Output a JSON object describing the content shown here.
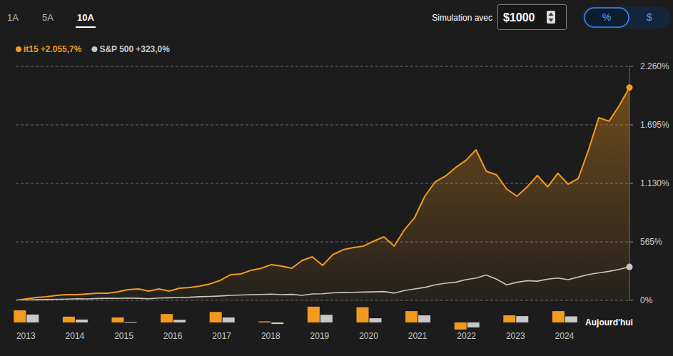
{
  "controls": {
    "tabs": [
      "1A",
      "5A",
      "10A"
    ],
    "active_tab": "10A",
    "simulation_label": "Simulation avec",
    "amount": "$1000",
    "mode_buttons": [
      "%",
      "$"
    ],
    "active_mode": "%"
  },
  "chart_data": [
    {
      "type": "line",
      "x": [
        0,
        2,
        4,
        6,
        8,
        10,
        12,
        14,
        16,
        18,
        20,
        22,
        24,
        26,
        28,
        30,
        32,
        34,
        36,
        38,
        40,
        42,
        44,
        46,
        48,
        50,
        52,
        54,
        56,
        58,
        60,
        62,
        64,
        66,
        68,
        70,
        72,
        74,
        76,
        78,
        80,
        82,
        84,
        86,
        88,
        90,
        92,
        94,
        96,
        98,
        100,
        102,
        104,
        106,
        108,
        110,
        112,
        114,
        116,
        118,
        120
      ],
      "series": [
        {
          "name": "it15",
          "total_label": "+2.055,7%",
          "color": "#f39a1e",
          "marker": "end-dot",
          "values": [
            0,
            14,
            28,
            34,
            48,
            55,
            55,
            62,
            69,
            69,
            83,
            103,
            110,
            90,
            110,
            90,
            117,
            124,
            138,
            159,
            193,
            248,
            255,
            290,
            310,
            345,
            331,
            310,
            386,
            420,
            338,
            441,
            489,
            510,
            524,
            572,
            613,
            524,
            682,
            799,
            1006,
            1144,
            1199,
            1282,
            1351,
            1454,
            1247,
            1213,
            1075,
            1006,
            1096,
            1206,
            1096,
            1227,
            1123,
            1178,
            1454,
            1764,
            1730,
            1881,
            2055.7
          ]
        },
        {
          "name": "S&P 500",
          "total_label": "+323,0%",
          "color": "#c8c8c8",
          "marker": "end-dot",
          "values": [
            0,
            3,
            6,
            8,
            10,
            12,
            15,
            14,
            18,
            20,
            19,
            22,
            20,
            16,
            22,
            25,
            28,
            30,
            35,
            38,
            42,
            48,
            52,
            55,
            57,
            60,
            55,
            58,
            48,
            62,
            64,
            72,
            75,
            78,
            80,
            82,
            85,
            70,
            95,
            110,
            125,
            150,
            165,
            175,
            200,
            215,
            245,
            205,
            150,
            175,
            190,
            185,
            205,
            215,
            200,
            225,
            250,
            265,
            280,
            300,
            323
          ]
        }
      ],
      "xlim": [
        0,
        120
      ],
      "ylim": [
        0,
        2260
      ],
      "yticks": [
        {
          "value": 0,
          "label": "0%"
        },
        {
          "value": 565,
          "label": "565%"
        },
        {
          "value": 1130,
          "label": "1.130%"
        },
        {
          "value": 1695,
          "label": "1.695%"
        },
        {
          "value": 2260,
          "label": "2.260%"
        }
      ],
      "grid": true,
      "legend": "top-left",
      "tick_labels": "y"
    },
    {
      "type": "bar",
      "categories": [
        "2013",
        "2014",
        "2015",
        "2016",
        "2017",
        "2018",
        "2019",
        "2020",
        "2021",
        "2022",
        "2023",
        "2024",
        "Aujourd'hui"
      ],
      "series": [
        {
          "name": "it15",
          "color": "#f39a1e",
          "values": [
            46,
            22,
            19,
            32,
            40,
            4,
            60,
            58,
            43,
            -27,
            27,
            43,
            null
          ]
        },
        {
          "name": "S&P 500",
          "color": "#c8c8c8",
          "values": [
            30,
            11,
            1,
            10,
            19,
            -6,
            29,
            16,
            27,
            -19,
            24,
            23,
            null
          ]
        }
      ],
      "ylim": [
        -30,
        65
      ],
      "tick_labels": false
    }
  ]
}
